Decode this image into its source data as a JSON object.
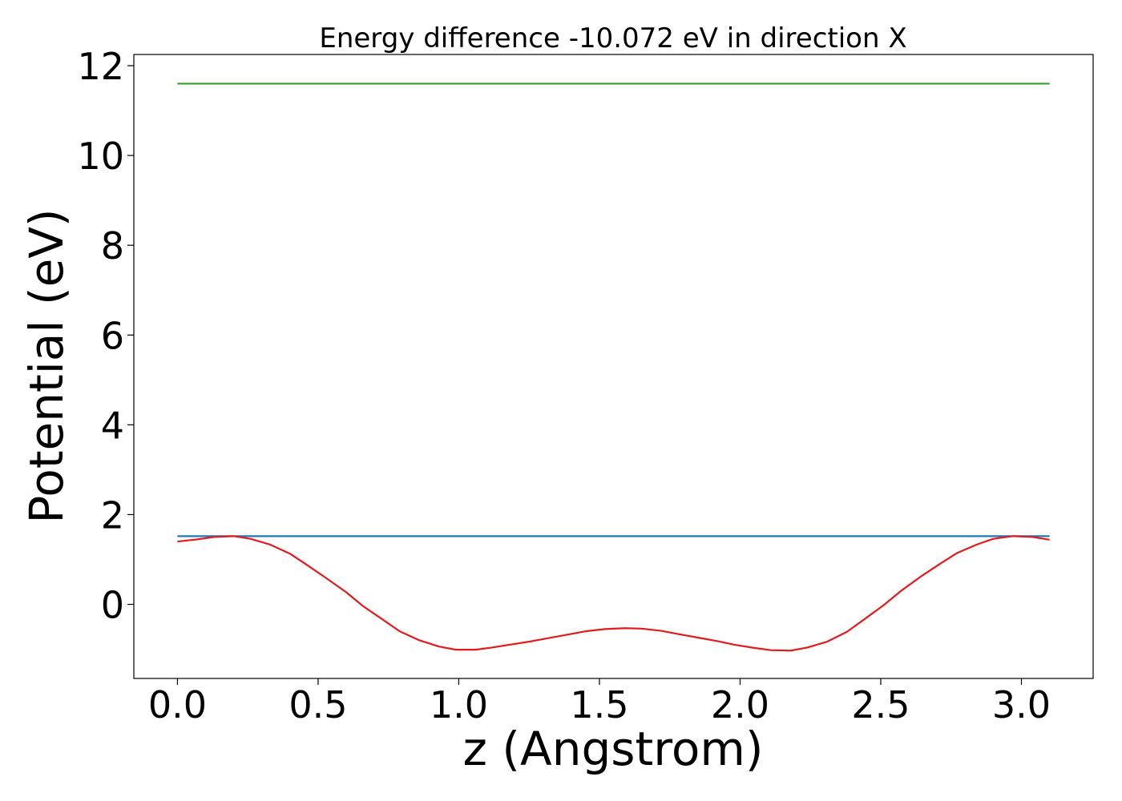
{
  "chart_data": {
    "type": "line",
    "title": "Energy difference -10.072 eV in direction X",
    "xlabel": "z (Angstrom)",
    "ylabel": "Potential (eV)",
    "xlim": [
      -0.155,
      3.255
    ],
    "ylim": [
      -1.65,
      12.25
    ],
    "xticks": [
      0.0,
      0.5,
      1.0,
      1.5,
      2.0,
      2.5,
      3.0
    ],
    "xtick_labels": [
      "0.0",
      "0.5",
      "1.0",
      "1.5",
      "2.0",
      "2.5",
      "3.0"
    ],
    "yticks": [
      0,
      2,
      4,
      6,
      8,
      10,
      12
    ],
    "ytick_labels": [
      "0",
      "2",
      "4",
      "6",
      "8",
      "10",
      "12"
    ],
    "grid": false,
    "series": [
      {
        "color": "#2ca02c",
        "x": [
          0.0,
          3.1
        ],
        "y": [
          11.6,
          11.6
        ]
      },
      {
        "color": "#1f77b4",
        "x": [
          0.0,
          3.1
        ],
        "y": [
          1.52,
          1.52
        ]
      },
      {
        "color": "#e41a1c",
        "x": [
          0.0,
          0.06,
          0.13,
          0.2,
          0.26,
          0.33,
          0.4,
          0.46,
          0.53,
          0.6,
          0.66,
          0.73,
          0.79,
          0.86,
          0.93,
          0.99,
          1.06,
          1.12,
          1.19,
          1.26,
          1.32,
          1.39,
          1.45,
          1.52,
          1.59,
          1.65,
          1.72,
          1.78,
          1.85,
          1.92,
          1.98,
          2.05,
          2.11,
          2.18,
          2.24,
          2.31,
          2.38,
          2.44,
          2.51,
          2.57,
          2.64,
          2.71,
          2.77,
          2.84,
          2.9,
          2.97,
          3.04,
          3.1
        ],
        "y": [
          1.4,
          1.44,
          1.5,
          1.52,
          1.46,
          1.33,
          1.13,
          0.88,
          0.58,
          0.27,
          -0.04,
          -0.34,
          -0.6,
          -0.8,
          -0.94,
          -1.01,
          -1.01,
          -0.96,
          -0.89,
          -0.82,
          -0.75,
          -0.67,
          -0.6,
          -0.55,
          -0.53,
          -0.54,
          -0.59,
          -0.66,
          -0.74,
          -0.82,
          -0.9,
          -0.97,
          -1.02,
          -1.03,
          -0.96,
          -0.83,
          -0.61,
          -0.34,
          -0.02,
          0.29,
          0.61,
          0.9,
          1.14,
          1.33,
          1.46,
          1.52,
          1.5,
          1.44
        ]
      }
    ]
  }
}
